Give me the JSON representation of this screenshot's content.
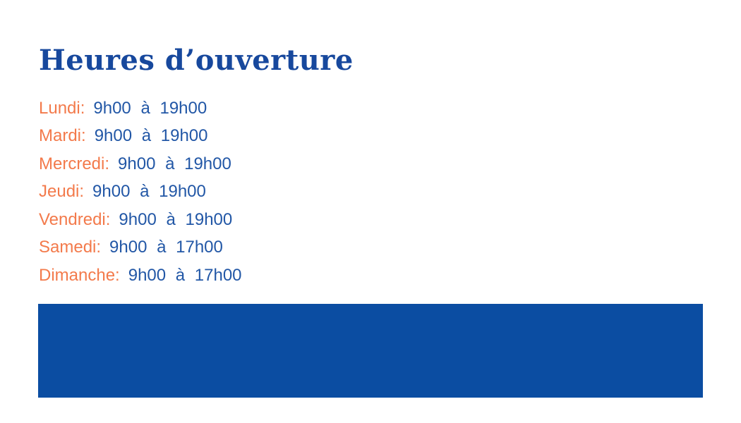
{
  "page": {
    "title": "Heures d’ouverture",
    "colors": {
      "title_blue": "#17489d",
      "time_blue": "#2257a6",
      "day_orange": "#f37a4b",
      "banner_blue": "#0b4da2",
      "background": "#ffffff"
    },
    "hours": [
      {
        "day": "Lundi:",
        "time": "9h00 à 19h00"
      },
      {
        "day": "Mardi:",
        "time": "9h00 à 19h00"
      },
      {
        "day": "Mercredi:",
        "time": "9h00 à 19h00"
      },
      {
        "day": "Jeudi:",
        "time": "9h00 à 19h00"
      },
      {
        "day": "Vendredi:",
        "time": "9h00 à 19h00"
      },
      {
        "day": "Samedi:",
        "time": "9h00 à 17h00"
      },
      {
        "day": "Dimanche:",
        "time": "9h00 à 17h00"
      }
    ]
  }
}
